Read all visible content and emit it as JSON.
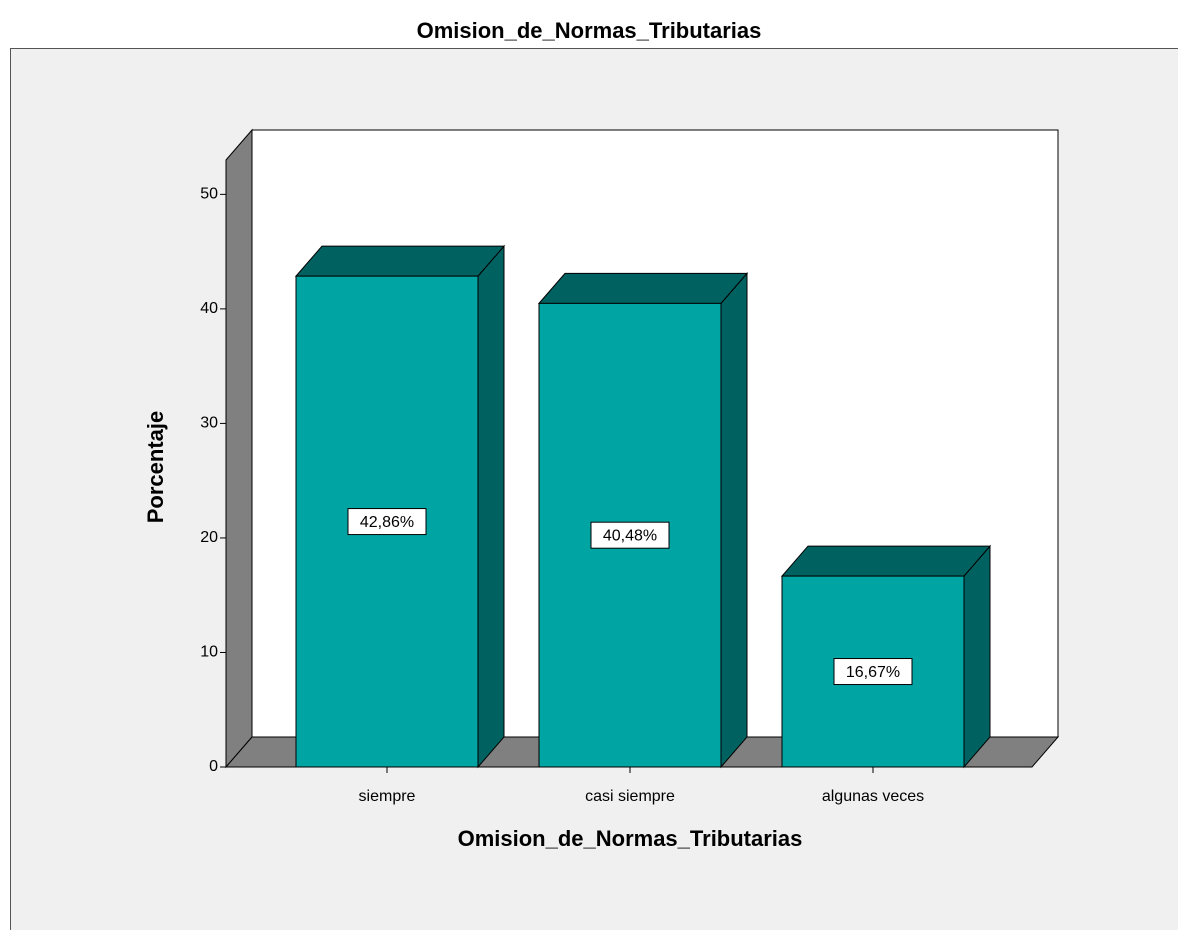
{
  "chart_data": {
    "type": "bar3d",
    "title": "Omision_de_Normas_Tributarias",
    "x_label": "Omision_de_Normas_Tributarias",
    "y_label": "Porcentaje",
    "categories": [
      "siempre",
      "casi siempre",
      "algunas veces"
    ],
    "values": [
      42.86,
      40.48,
      16.67
    ],
    "value_labels": [
      "42,86%",
      "40,48%",
      "16,67%"
    ],
    "color": "#00a5a3",
    "shade_color": "#006260",
    "ylim": [
      0,
      53
    ],
    "yticks": [
      0,
      10,
      20,
      30,
      40,
      50
    ]
  }
}
